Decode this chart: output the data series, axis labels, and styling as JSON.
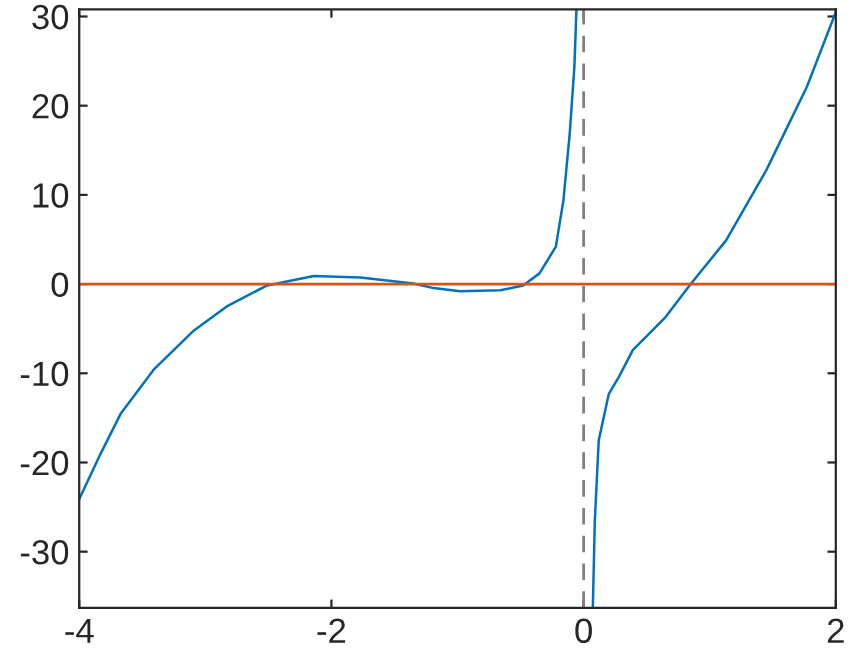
{
  "chart_data": {
    "type": "line",
    "xlim": [
      -4,
      2
    ],
    "ylim": [
      -36.3,
      30.8
    ],
    "xticks": [
      -4,
      -2,
      0,
      2
    ],
    "yticks": [
      -30,
      -20,
      -10,
      0,
      10,
      20,
      30
    ],
    "grid": false,
    "legend": false,
    "marker": "none",
    "line_style": "solid",
    "series": [
      {
        "color": "#0072bd",
        "x": [
          -4,
          -3.83,
          -3.67,
          -3.41,
          -3.09,
          -2.83,
          -2.51,
          -2.14,
          -1.77,
          -1.35,
          -1.19,
          -0.98,
          -0.66,
          -0.48,
          -0.35,
          -0.22,
          -0.16,
          -0.11,
          -0.073,
          -0.057,
          0,
          0.073,
          0.089,
          0.12,
          0.2,
          0.28,
          0.39,
          0.65,
          0.84,
          1.13,
          1.45,
          1.77,
          2.0
        ],
        "values": [
          -24.1,
          -19.0,
          -14.5,
          -9.6,
          -5.2,
          -2.5,
          -0.15,
          0.9,
          0.75,
          0.07,
          -0.45,
          -0.8,
          -0.7,
          -0.15,
          1.2,
          4.2,
          9.4,
          16.9,
          24.4,
          30.8,
          null,
          -36.3,
          -26.5,
          -17.5,
          -12.3,
          -10.4,
          -7.4,
          -3.7,
          -0.15,
          4.9,
          12.8,
          22.1,
          30.5
        ]
      }
    ],
    "ref_lines": [
      {
        "axis": "y",
        "value": 0,
        "color": "#d95319",
        "line_style": "solid"
      },
      {
        "axis": "x",
        "value": 0,
        "color": "#808080",
        "line_style": "dashed"
      }
    ]
  }
}
